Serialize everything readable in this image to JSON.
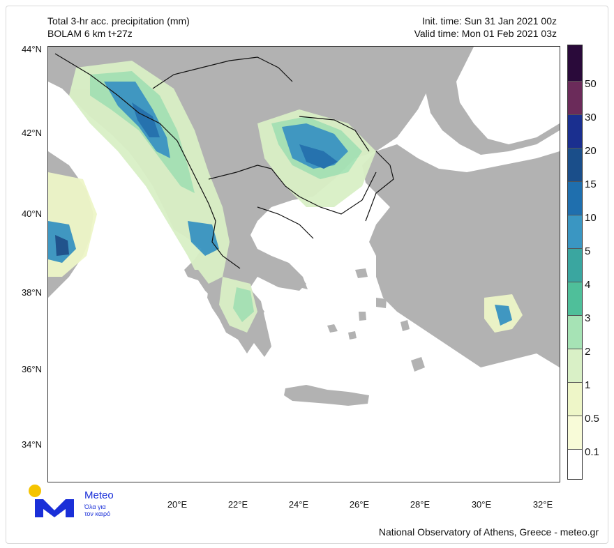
{
  "header": {
    "title_line1": "Total 3-hr acc. precipitation (mm)",
    "title_line2": "BOLAM 6 km t+27z",
    "init_time": "Init. time: Sun 31 Jan 2021 00z",
    "valid_time": "Valid time: Mon 01 Feb 2021 03z"
  },
  "axes": {
    "lat_labels": [
      "44°N",
      "42°N",
      "40°N",
      "38°N",
      "36°N",
      "34°N"
    ],
    "lon_labels": [
      "20°E",
      "22°E",
      "24°E",
      "26°E",
      "28°E",
      "30°E",
      "32°E"
    ]
  },
  "colorbar": {
    "labels": [
      "50",
      "30",
      "20",
      "15",
      "10",
      "5",
      "4",
      "3",
      "2",
      "1",
      "0.5",
      "0.1"
    ],
    "colors": [
      "#2a0a3a",
      "#6b2b5a",
      "#1a2f8f",
      "#1a4e8a",
      "#1f6fae",
      "#3a96c2",
      "#3aa6a0",
      "#4fbf9a",
      "#a6e3b5",
      "#d9f0c6",
      "#eef6c8",
      "#f8fbd8",
      "#ffffff"
    ]
  },
  "logo": {
    "brand": "Meteo",
    "tagline_1": "Όλα για",
    "tagline_2": "τον καιρό",
    "accent": "#1a2fd8",
    "sun": "#f5c400"
  },
  "footer": {
    "credit": "National Observatory of Athens, Greece - meteo.gr"
  },
  "map_colors": {
    "land": "#b2b2b2",
    "sea": "#ffffff",
    "border": "#111111"
  }
}
